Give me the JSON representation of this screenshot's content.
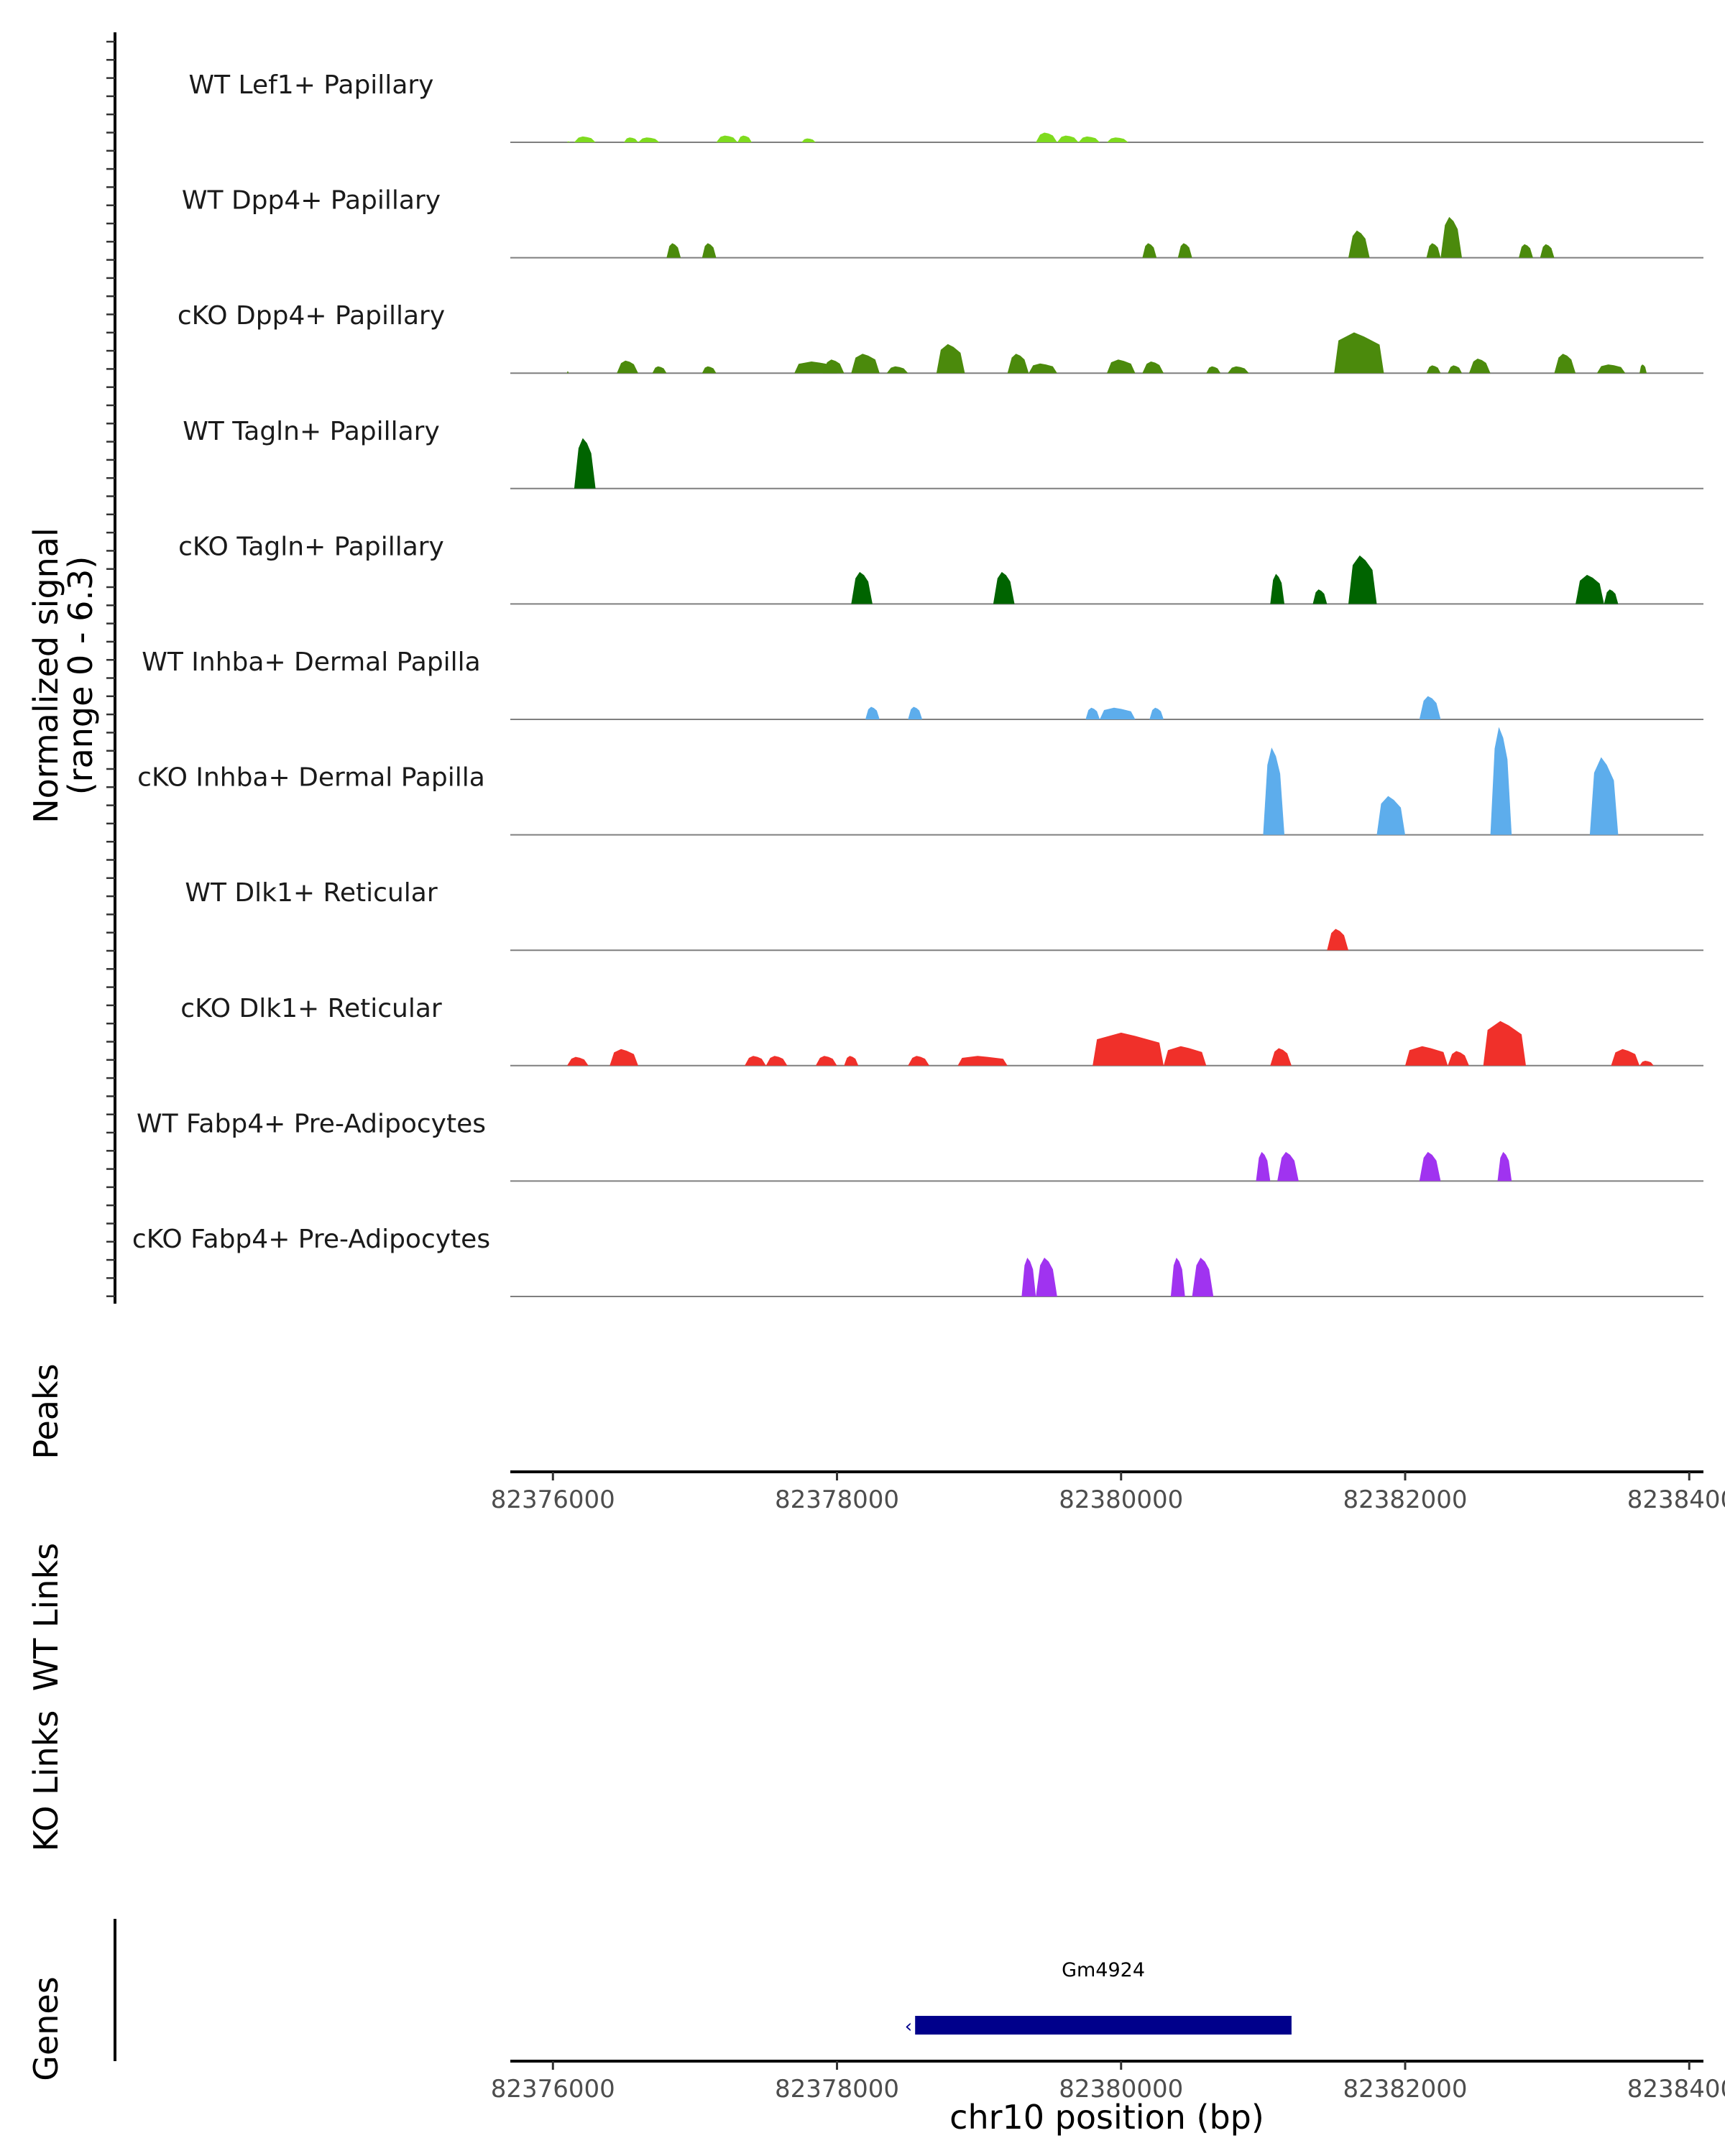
{
  "chart_data": {
    "type": "coverage",
    "title": "",
    "ylabel": "Normalized signal",
    "ylabel_range": "(range 0 - 6.3)",
    "ylim": [
      0,
      6.3
    ],
    "xlabel": "chr10 position (bp)",
    "xlim": [
      82375700,
      82384100
    ],
    "xticks": [
      82376000,
      82378000,
      82380000,
      82382000,
      82384000
    ],
    "xtick_labels": [
      "82376000",
      "82378000",
      "82380000",
      "82382000",
      "82384000"
    ],
    "tracks": [
      {
        "name": "WT Lef1+ Papillary",
        "color": "#7FDB1F",
        "peaks": [
          [
            82376100,
            82376120,
            0.1
          ],
          [
            82376150,
            82376300,
            0.6
          ],
          [
            82376500,
            82376600,
            0.5
          ],
          [
            82376600,
            82376750,
            0.5
          ],
          [
            82377150,
            82377300,
            0.7
          ],
          [
            82377300,
            82377400,
            0.7
          ],
          [
            82377750,
            82377850,
            0.4
          ],
          [
            82379400,
            82379550,
            1.0
          ],
          [
            82379550,
            82379700,
            0.7
          ],
          [
            82379700,
            82379850,
            0.6
          ],
          [
            82379900,
            82380050,
            0.5
          ]
        ]
      },
      {
        "name": "WT Dpp4+ Papillary",
        "color": "#4B8A0C",
        "peaks": [
          [
            82376800,
            82376900,
            1.5
          ],
          [
            82377050,
            82377150,
            1.5
          ],
          [
            82380150,
            82380250,
            1.5
          ],
          [
            82380400,
            82380500,
            1.5
          ],
          [
            82381600,
            82381750,
            2.8
          ],
          [
            82382150,
            82382250,
            1.5
          ],
          [
            82382250,
            82382400,
            4.2
          ],
          [
            82382800,
            82382900,
            1.4
          ],
          [
            82382950,
            82383050,
            1.4
          ]
        ]
      },
      {
        "name": "cKO Dpp4+ Papillary",
        "color": "#4B8A0C",
        "peaks": [
          [
            82376100,
            82376110,
            0.2
          ],
          [
            82376450,
            82376600,
            1.3
          ],
          [
            82376700,
            82376800,
            0.7
          ],
          [
            82377050,
            82377150,
            0.7
          ],
          [
            82377700,
            82378000,
            1.2
          ],
          [
            82377900,
            82378050,
            1.4
          ],
          [
            82378100,
            82378300,
            2.0
          ],
          [
            82378350,
            82378500,
            0.7
          ],
          [
            82378700,
            82378900,
            3.0
          ],
          [
            82379200,
            82379350,
            2.0
          ],
          [
            82379350,
            82379550,
            1.0
          ],
          [
            82379900,
            82380100,
            1.4
          ],
          [
            82380150,
            82380300,
            1.2
          ],
          [
            82380600,
            82380700,
            0.7
          ],
          [
            82380750,
            82380900,
            0.7
          ],
          [
            82381500,
            82381850,
            4.2
          ],
          [
            82382150,
            82382250,
            0.8
          ],
          [
            82382300,
            82382400,
            0.8
          ],
          [
            82382450,
            82382600,
            1.5
          ],
          [
            82383050,
            82383200,
            2.0
          ],
          [
            82383350,
            82383550,
            0.9
          ],
          [
            82383650,
            82383700,
            0.9
          ]
        ]
      },
      {
        "name": "WT Tagln+ Papillary",
        "color": "#006400",
        "peaks": [
          [
            82376150,
            82376300,
            5.2
          ]
        ]
      },
      {
        "name": "cKO Tagln+ Papillary",
        "color": "#006400",
        "peaks": [
          [
            82378100,
            82378250,
            3.3
          ],
          [
            82379100,
            82379250,
            3.3
          ],
          [
            82381050,
            82381150,
            3.1
          ],
          [
            82381350,
            82381450,
            1.5
          ],
          [
            82381600,
            82381800,
            5.0
          ],
          [
            82383200,
            82383400,
            3.0
          ],
          [
            82383400,
            82383500,
            1.5
          ]
        ]
      },
      {
        "name": "WT Inhba+ Dermal Papilla",
        "color": "#5DADEC",
        "peaks": [
          [
            82378200,
            82378300,
            1.3
          ],
          [
            82378500,
            82378600,
            1.3
          ],
          [
            82379750,
            82379850,
            1.2
          ],
          [
            82379850,
            82380100,
            1.2
          ],
          [
            82380200,
            82380300,
            1.2
          ],
          [
            82382100,
            82382250,
            2.4
          ]
        ]
      },
      {
        "name": "cKO Inhba+ Dermal Papilla",
        "color": "#5DADEC",
        "peaks": [
          [
            82381000,
            82381150,
            9.0
          ],
          [
            82381800,
            82382000,
            4.0
          ],
          [
            82382600,
            82382750,
            16.0
          ],
          [
            82383300,
            82383500,
            8.0
          ]
        ]
      },
      {
        "name": "WT Dlk1+ Reticular",
        "color": "#F0302A",
        "peaks": [
          [
            82381450,
            82381600,
            2.2
          ]
        ]
      },
      {
        "name": "cKO Dlk1+ Reticular",
        "color": "#F0302A",
        "peaks": [
          [
            82376100,
            82376250,
            0.9
          ],
          [
            82376400,
            82376600,
            1.7
          ],
          [
            82377350,
            82377500,
            1.0
          ],
          [
            82377500,
            82377650,
            1.0
          ],
          [
            82377850,
            82378000,
            1.0
          ],
          [
            82378050,
            82378150,
            1.0
          ],
          [
            82378500,
            82378650,
            1.0
          ],
          [
            82378850,
            82379200,
            1.0
          ],
          [
            82379800,
            82380300,
            3.4
          ],
          [
            82380300,
            82380600,
            2.0
          ],
          [
            82381050,
            82381200,
            1.8
          ],
          [
            82382000,
            82382300,
            2.0
          ],
          [
            82382300,
            82382450,
            1.5
          ],
          [
            82382550,
            82382850,
            4.6
          ],
          [
            82383450,
            82383650,
            1.7
          ],
          [
            82383650,
            82383750,
            0.5
          ]
        ]
      },
      {
        "name": "WT Fabp4+ Pre-Adipocytes",
        "color": "#A033F0",
        "peaks": [
          [
            82380950,
            82381050,
            3.0
          ],
          [
            82381100,
            82381250,
            3.0
          ],
          [
            82382100,
            82382250,
            3.0
          ],
          [
            82382650,
            82382750,
            3.0
          ]
        ]
      },
      {
        "name": "cKO Fabp4+ Pre-Adipocytes",
        "color": "#A033F0",
        "peaks": [
          [
            82379300,
            82379400,
            4.0
          ],
          [
            82379400,
            82379550,
            4.0
          ],
          [
            82380350,
            82380450,
            4.0
          ],
          [
            82380500,
            82380650,
            4.0
          ]
        ]
      }
    ],
    "panels": [
      "Peaks",
      "WT Links",
      "KO Links",
      "Genes"
    ],
    "genes": [
      {
        "name": "Gm4924",
        "start": 82378550,
        "end": 82381200,
        "strand": "-"
      }
    ]
  }
}
